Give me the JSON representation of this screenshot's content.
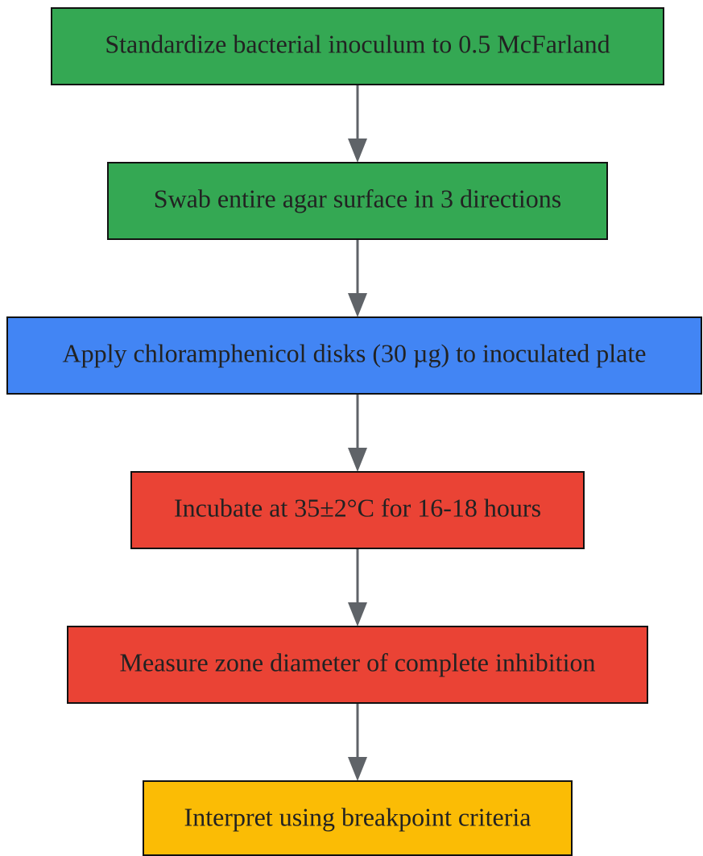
{
  "diagram": {
    "steps": [
      {
        "label": "Standardize bacterial inoculum to 0.5 McFarland",
        "color": "#34a853"
      },
      {
        "label": "Swab entire agar surface in 3 directions",
        "color": "#34a853"
      },
      {
        "label": "Apply chloramphenicol disks (30 µg) to inoculated plate",
        "color": "#4285f4"
      },
      {
        "label": "Incubate at 35±2°C for 16-18 hours",
        "color": "#ea4335"
      },
      {
        "label": "Measure zone diameter of complete inhibition",
        "color": "#ea4335"
      },
      {
        "label": "Interpret using breakpoint criteria",
        "color": "#fbbc05"
      }
    ],
    "edge_color": "#5f6368",
    "border_color": "#111111"
  }
}
